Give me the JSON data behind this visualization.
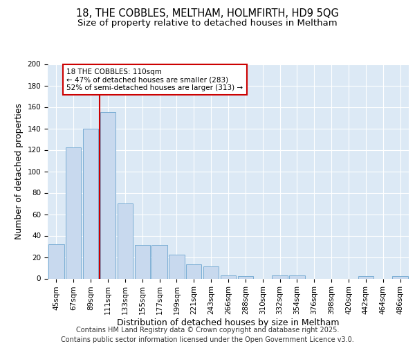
{
  "title_line1": "18, THE COBBLES, MELTHAM, HOLMFIRTH, HD9 5QG",
  "title_line2": "Size of property relative to detached houses in Meltham",
  "xlabel": "Distribution of detached houses by size in Meltham",
  "ylabel": "Number of detached properties",
  "bar_color": "#c8d9ee",
  "bar_edge_color": "#7aadd4",
  "background_color": "#dce9f5",
  "categories": [
    "45sqm",
    "67sqm",
    "89sqm",
    "111sqm",
    "133sqm",
    "155sqm",
    "177sqm",
    "199sqm",
    "221sqm",
    "243sqm",
    "266sqm",
    "288sqm",
    "310sqm",
    "332sqm",
    "354sqm",
    "376sqm",
    "398sqm",
    "420sqm",
    "442sqm",
    "464sqm",
    "486sqm"
  ],
  "values": [
    32,
    122,
    140,
    155,
    70,
    31,
    31,
    22,
    13,
    11,
    3,
    2,
    0,
    3,
    3,
    0,
    0,
    0,
    2,
    0,
    2
  ],
  "vline_x_index": 3,
  "vline_color": "#cc0000",
  "annotation_text": "18 THE COBBLES: 110sqm\n← 47% of detached houses are smaller (283)\n52% of semi-detached houses are larger (313) →",
  "annotation_box_color": "#cc0000",
  "ylim": [
    0,
    200
  ],
  "yticks": [
    0,
    20,
    40,
    60,
    80,
    100,
    120,
    140,
    160,
    180,
    200
  ],
  "footer_line1": "Contains HM Land Registry data © Crown copyright and database right 2025.",
  "footer_line2": "Contains public sector information licensed under the Open Government Licence v3.0.",
  "grid_color": "#ffffff",
  "title_fontsize": 10.5,
  "subtitle_fontsize": 9.5,
  "axis_label_fontsize": 9,
  "tick_fontsize": 7.5,
  "annotation_fontsize": 7.5,
  "footer_fontsize": 7
}
